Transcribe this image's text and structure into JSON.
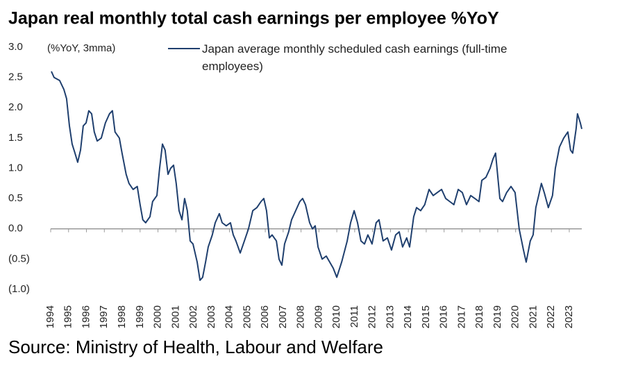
{
  "chart_data": {
    "type": "line",
    "title": "Japan real monthly total cash earnings per employee %YoY",
    "y_label": "(%YoY, 3mma)",
    "source": "Source: Ministry of Health, Labour and Welfare",
    "ylim": [
      -1.0,
      3.0
    ],
    "yticks": [
      {
        "value": 3.0,
        "label": "3.0"
      },
      2.5,
      {
        "value": 2.0,
        "label": "2.0"
      },
      1.5,
      {
        "value": 1.0,
        "label": "1.0"
      },
      0.5,
      {
        "value": 0,
        "label": "0.0"
      },
      {
        "value": -0.5,
        "label": "(0.5)"
      },
      {
        "value": -1.0,
        "label": "(1.0)"
      }
    ],
    "xlim": [
      1994,
      2023.7
    ],
    "xticks": [
      1994,
      1995,
      1996,
      1997,
      1998,
      1999,
      2000,
      2001,
      2002,
      2003,
      2004,
      2005,
      2006,
      2007,
      2008,
      2009,
      2010,
      2011,
      2012,
      2013,
      2014,
      2015,
      2016,
      2017,
      2018,
      2019,
      2020,
      2021,
      2022,
      2023
    ],
    "x": [
      1994.04,
      1994.19,
      1994.5,
      1994.74,
      1994.89,
      1995.05,
      1995.2,
      1995.36,
      1995.51,
      1995.67,
      1995.82,
      1995.98,
      1996.13,
      1996.29,
      1996.44,
      1996.6,
      1996.83,
      1997.06,
      1997.29,
      1997.45,
      1997.6,
      1997.84,
      1997.99,
      1998.22,
      1998.38,
      1998.61,
      1998.84,
      1999.0,
      1999.15,
      1999.31,
      1999.55,
      1999.7,
      1999.94,
      2000.09,
      2000.25,
      2000.4,
      2000.56,
      2000.71,
      2000.87,
      2001.02,
      2001.18,
      2001.34,
      2001.49,
      2001.64,
      2001.8,
      2001.96,
      2002.19,
      2002.35,
      2002.5,
      2002.66,
      2002.81,
      2003.04,
      2003.2,
      2003.43,
      2003.59,
      2003.82,
      2004.05,
      2004.21,
      2004.36,
      2004.6,
      2004.83,
      2005.06,
      2005.3,
      2005.53,
      2005.76,
      2005.92,
      2006.07,
      2006.23,
      2006.38,
      2006.62,
      2006.77,
      2006.93,
      2007.08,
      2007.31,
      2007.47,
      2007.7,
      2007.93,
      2008.09,
      2008.25,
      2008.48,
      2008.64,
      2008.79,
      2008.95,
      2009.18,
      2009.41,
      2009.8,
      2010.0,
      2010.27,
      2010.58,
      2010.77,
      2010.97,
      2011.16,
      2011.35,
      2011.55,
      2011.74,
      2011.97,
      2012.2,
      2012.36,
      2012.59,
      2012.83,
      2013.06,
      2013.29,
      2013.49,
      2013.68,
      2013.91,
      2014.07,
      2014.3,
      2014.46,
      2014.69,
      2014.92,
      2015.16,
      2015.39,
      2015.62,
      2015.86,
      2016.09,
      2016.32,
      2016.55,
      2016.79,
      2017.02,
      2017.25,
      2017.49,
      2017.72,
      2017.95,
      2018.11,
      2018.34,
      2018.57,
      2018.73,
      2018.88,
      2019.12,
      2019.27,
      2019.5,
      2019.74,
      2019.97,
      2020.2,
      2020.44,
      2020.59,
      2020.82,
      2020.98,
      2021.13,
      2021.29,
      2021.44,
      2021.6,
      2021.83,
      2022.06,
      2022.22,
      2022.45,
      2022.69,
      2022.92,
      2023.07,
      2023.19,
      2023.38,
      2023.46,
      2023.62,
      2023.7
    ],
    "series": [
      {
        "name": "Japan average monthly scheduled cash earnings (full-time employees)",
        "color": "#1f3f6e",
        "values": [
          2.6,
          2.5,
          2.45,
          2.3,
          2.15,
          1.7,
          1.4,
          1.25,
          1.1,
          1.3,
          1.7,
          1.75,
          1.95,
          1.9,
          1.6,
          1.45,
          1.5,
          1.75,
          1.9,
          1.95,
          1.6,
          1.5,
          1.25,
          0.9,
          0.75,
          0.65,
          0.7,
          0.4,
          0.15,
          0.1,
          0.2,
          0.45,
          0.55,
          1.0,
          1.4,
          1.3,
          0.9,
          1.0,
          1.05,
          0.75,
          0.3,
          0.15,
          0.5,
          0.3,
          -0.2,
          -0.25,
          -0.55,
          -0.85,
          -0.8,
          -0.55,
          -0.3,
          -0.1,
          0.1,
          0.25,
          0.1,
          0.05,
          0.1,
          -0.1,
          -0.2,
          -0.4,
          -0.2,
          0.0,
          0.3,
          0.35,
          0.45,
          0.5,
          0.3,
          -0.15,
          -0.1,
          -0.2,
          -0.5,
          -0.6,
          -0.25,
          -0.05,
          0.15,
          0.3,
          0.45,
          0.5,
          0.4,
          0.1,
          0.0,
          0.05,
          -0.3,
          -0.5,
          -0.45,
          -0.65,
          -0.8,
          -0.55,
          -0.2,
          0.1,
          0.3,
          0.1,
          -0.2,
          -0.25,
          -0.1,
          -0.25,
          0.1,
          0.15,
          -0.2,
          -0.15,
          -0.35,
          -0.1,
          -0.05,
          -0.3,
          -0.15,
          -0.3,
          0.2,
          0.35,
          0.3,
          0.4,
          0.65,
          0.55,
          0.6,
          0.65,
          0.5,
          0.45,
          0.4,
          0.65,
          0.6,
          0.4,
          0.55,
          0.5,
          0.45,
          0.8,
          0.85,
          1.0,
          1.15,
          1.25,
          0.5,
          0.45,
          0.6,
          0.7,
          0.6,
          0.0,
          -0.35,
          -0.55,
          -0.2,
          -0.1,
          0.35,
          0.55,
          0.75,
          0.6,
          0.35,
          0.55,
          1.0,
          1.35,
          1.5,
          1.6,
          1.3,
          1.25,
          1.65,
          1.9,
          1.75,
          1.65
        ]
      }
    ]
  }
}
